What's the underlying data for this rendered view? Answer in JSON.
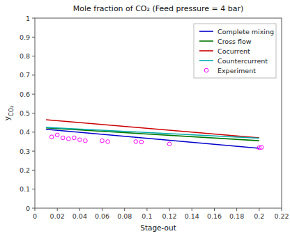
{
  "chart_data": {
    "type": "line",
    "title": "Mole fraction of CO₂ (Feed pressure = 4 bar)",
    "x_label": "Stage-out",
    "y_label": "yCO₂",
    "xlim": [
      0,
      0.22
    ],
    "ylim": [
      0,
      1
    ],
    "xticks": [
      0,
      0.02,
      0.04,
      0.06,
      0.08,
      0.1,
      0.12,
      0.14,
      0.16,
      0.18,
      0.2,
      0.22
    ],
    "yticks": [
      0,
      0.1,
      0.2,
      0.3,
      0.4,
      0.5,
      0.6,
      0.7,
      0.8,
      0.9,
      1
    ],
    "grid": false,
    "legend": "upper right",
    "series": [
      {
        "name": "Complete mixing",
        "type": "line",
        "color": "#0000CC",
        "x": [
          0.01,
          0.2
        ],
        "values": [
          0.415,
          0.315
        ]
      },
      {
        "name": "Cross flow",
        "type": "line",
        "color": "#007700",
        "x": [
          0.01,
          0.2
        ],
        "values": [
          0.422,
          0.355
        ]
      },
      {
        "name": "Cocurrent",
        "type": "line",
        "color": "#CC0000",
        "x": [
          0.01,
          0.2
        ],
        "values": [
          0.465,
          0.37
        ]
      },
      {
        "name": "Countercurrent",
        "type": "line",
        "color": "#00AAAA",
        "x": [
          0.01,
          0.2
        ],
        "values": [
          0.425,
          0.368
        ]
      },
      {
        "name": "Experiment",
        "type": "scatter",
        "marker": "circle",
        "color": "#FF00FF",
        "x": [
          0.015,
          0.02,
          0.025,
          0.03,
          0.035,
          0.04,
          0.045,
          0.06,
          0.065,
          0.09,
          0.095,
          0.12,
          0.2,
          0.202
        ],
        "values": [
          0.375,
          0.385,
          0.37,
          0.365,
          0.37,
          0.36,
          0.355,
          0.355,
          0.35,
          0.35,
          0.348,
          0.338,
          0.318,
          0.32
        ]
      }
    ]
  }
}
